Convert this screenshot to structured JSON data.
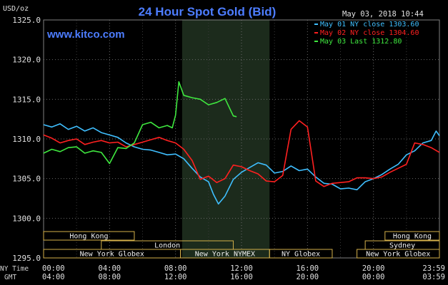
{
  "chart_data": {
    "type": "line",
    "title": "24 Hour Spot Gold (Bid)",
    "source": "www.kitco.com",
    "date_stamp": "May 03, 2018 10:44",
    "y_unit": "USD/oz",
    "ylim": [
      1295,
      1325
    ],
    "yticks": [
      "1325.0",
      "1320.0",
      "1315.0",
      "1310.0",
      "1305.0",
      "1300.0",
      "1295.0"
    ],
    "ytick_values": [
      1325,
      1320,
      1315,
      1310,
      1305,
      1300,
      1295
    ],
    "x_row_labels": {
      "ny": "NY Time",
      "gmt": "GMT"
    },
    "x_ticks": [
      {
        "hour": 0,
        "ny": "00:00",
        "gmt": "04:00"
      },
      {
        "hour": 4,
        "ny": "04:00",
        "gmt": "08:00"
      },
      {
        "hour": 8,
        "ny": "08:00",
        "gmt": "12:00"
      },
      {
        "hour": 12,
        "ny": "12:00",
        "gmt": "16:00"
      },
      {
        "hour": 16,
        "ny": "16:00",
        "gmt": "20:00"
      },
      {
        "hour": 20,
        "ny": "20:00",
        "gmt": "00:00"
      },
      {
        "hour": 24,
        "ny": "23:59",
        "gmt": "03:59"
      }
    ],
    "shaded_session_hours": [
      8.4,
      13.7
    ],
    "grid": true,
    "legend_position": "top-right",
    "markets": [
      {
        "name": "Hong Kong",
        "row": 0,
        "start": 0,
        "end": 5.5
      },
      {
        "name": "Hong Kong",
        "row": 0,
        "start": 20.7,
        "end": 24
      },
      {
        "name": "London",
        "row": 1,
        "start": 3.5,
        "end": 11.5
      },
      {
        "name": "Sydney",
        "row": 1,
        "start": 19.5,
        "end": 24
      },
      {
        "name": "New York Globex",
        "row": 2,
        "start": 0,
        "end": 8.3
      },
      {
        "name": "New York NYMEX",
        "row": 2,
        "start": 8.3,
        "end": 13.7
      },
      {
        "name": "NY Globex",
        "row": 2,
        "start": 13.7,
        "end": 17.5
      },
      {
        "name": "New York Globex",
        "row": 2,
        "start": 19,
        "end": 24
      }
    ],
    "series": [
      {
        "name": "May 01 NY close 1303.60",
        "color": "#3fbfff",
        "x": [
          0,
          0.5,
          1,
          1.5,
          2,
          2.5,
          3,
          3.5,
          4,
          4.5,
          5,
          5.5,
          6,
          6.5,
          7,
          7.5,
          8,
          8.5,
          9,
          9.5,
          10,
          10.3,
          10.6,
          11,
          11.5,
          12,
          12.5,
          13,
          13.5,
          14,
          14.5,
          15,
          15.5,
          16,
          16.5,
          17,
          17.5,
          18,
          18.5,
          19,
          19.5,
          20,
          20.5,
          21,
          21.5,
          22,
          22.5,
          23,
          23.5,
          23.8,
          24
        ],
        "values": [
          1311.8,
          1311.5,
          1311.9,
          1311.2,
          1311.6,
          1311.0,
          1311.4,
          1310.8,
          1310.5,
          1310.2,
          1309.5,
          1309.0,
          1308.7,
          1308.6,
          1308.3,
          1308.0,
          1308.1,
          1307.5,
          1306.3,
          1305.2,
          1304.6,
          1303.0,
          1301.8,
          1302.8,
          1304.9,
          1305.8,
          1306.4,
          1307.0,
          1306.7,
          1305.7,
          1305.9,
          1306.6,
          1306.0,
          1306.2,
          1305.2,
          1304.4,
          1304.3,
          1303.7,
          1303.8,
          1303.6,
          1304.6,
          1305.0,
          1305.5,
          1306.2,
          1306.8,
          1308.0,
          1308.5,
          1309.5,
          1309.8,
          1311.0,
          1310.4
        ]
      },
      {
        "name": "May 02 NY close 1304.60",
        "color": "#ff2020",
        "x": [
          0,
          0.5,
          1,
          1.5,
          2,
          2.5,
          3,
          3.5,
          4,
          4.5,
          5,
          5.5,
          6,
          6.5,
          7,
          7.5,
          8,
          8.5,
          9,
          9.5,
          10,
          10.5,
          11,
          11.5,
          12,
          12.5,
          13,
          13.5,
          14,
          14.5,
          15,
          15.5,
          16,
          16.5,
          17,
          17.5,
          18,
          18.5,
          19,
          19.5,
          20,
          20.5,
          21,
          21.5,
          22,
          22.5,
          23,
          23.5,
          24
        ],
        "values": [
          1310.5,
          1310.1,
          1309.5,
          1309.8,
          1310.0,
          1309.3,
          1309.6,
          1309.8,
          1309.5,
          1309.6,
          1309.0,
          1309.3,
          1309.6,
          1309.9,
          1310.2,
          1309.8,
          1309.5,
          1308.7,
          1307.3,
          1304.9,
          1305.3,
          1304.5,
          1305.0,
          1306.7,
          1306.5,
          1306.0,
          1305.6,
          1304.7,
          1304.6,
          1305.4,
          1311.2,
          1312.3,
          1311.5,
          1304.7,
          1304.0,
          1304.4,
          1304.5,
          1304.6,
          1305.1,
          1305.1,
          1305.0,
          1305.2,
          1305.8,
          1306.3,
          1306.8,
          1309.5,
          1309.3,
          1308.9,
          1308.3
        ]
      },
      {
        "name": "May 03 Last 1312.80",
        "color": "#3fe83f",
        "x": [
          0,
          0.5,
          1,
          1.5,
          2,
          2.5,
          3,
          3.5,
          4,
          4.5,
          5,
          5.5,
          6,
          6.5,
          7,
          7.5,
          7.8,
          8,
          8.2,
          8.5,
          9,
          9.5,
          10,
          10.5,
          11,
          11.5,
          11.7
        ],
        "values": [
          1308.2,
          1308.7,
          1308.4,
          1308.9,
          1309.0,
          1308.2,
          1308.5,
          1308.3,
          1306.9,
          1308.9,
          1308.8,
          1309.5,
          1311.8,
          1312.1,
          1311.4,
          1311.7,
          1311.4,
          1313.0,
          1317.2,
          1315.5,
          1315.2,
          1315.0,
          1314.3,
          1314.6,
          1315.1,
          1312.9,
          1312.8
        ]
      }
    ]
  }
}
